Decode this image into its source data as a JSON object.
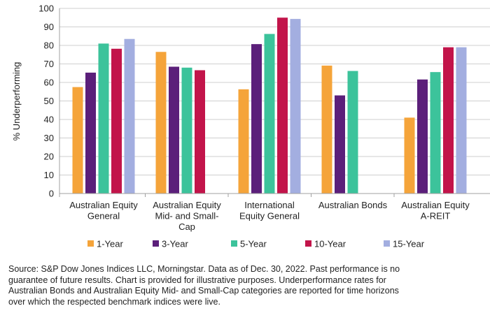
{
  "chart_data": {
    "type": "bar",
    "title": "",
    "xlabel": "",
    "ylabel": "% Underperforming",
    "ylim": [
      0,
      100
    ],
    "yticks": [
      0,
      10,
      20,
      30,
      40,
      50,
      60,
      70,
      80,
      90,
      100
    ],
    "grid": true,
    "legend_position": "bottom",
    "categories": [
      [
        "Australian Equity",
        "General"
      ],
      [
        "Australian Equity",
        "Mid- and Small-",
        "Cap"
      ],
      [
        "International",
        "Equity General"
      ],
      [
        "Australian Bonds"
      ],
      [
        "Australian Equity",
        "A-REIT"
      ]
    ],
    "series": [
      {
        "name": "1-Year",
        "color": "#f5a43a",
        "values": [
          57.5,
          76.5,
          56.3,
          69.1,
          41.0
        ]
      },
      {
        "name": "3-Year",
        "color": "#5b1f7a",
        "values": [
          65.3,
          68.5,
          80.7,
          53.0,
          61.6
        ]
      },
      {
        "name": "5-Year",
        "color": "#3cc39b",
        "values": [
          81.0,
          68.0,
          86.2,
          66.2,
          65.6
        ]
      },
      {
        "name": "10-Year",
        "color": "#c2144a",
        "values": [
          78.2,
          66.6,
          95.0,
          null,
          79.0
        ]
      },
      {
        "name": "15-Year",
        "color": "#a3aee0",
        "values": [
          83.5,
          null,
          94.3,
          null,
          79.0
        ]
      }
    ]
  },
  "footer": {
    "source_lines": [
      "Source: S&P Dow Jones Indices LLC, Morningstar.  Data as of Dec. 30, 2022.  Past performance is no",
      "guarantee of future results.  Chart is provided for illustrative purposes.  Underperformance rates for",
      "Australian Bonds and Australian Equity Mid- and Small-Cap categories are reported for time horizons",
      "over which the respected benchmark indices were live."
    ]
  }
}
